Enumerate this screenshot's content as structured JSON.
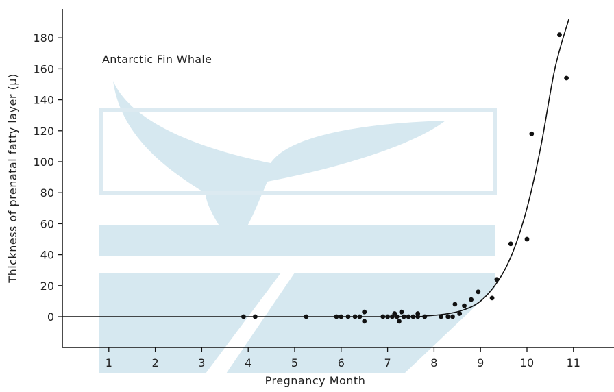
{
  "chart_data": {
    "type": "scatter",
    "title": "",
    "annotation": "Antarctic Fin Whale",
    "xlabel": "Pregnancy Month",
    "ylabel": "Thickness of prenatal fatty layer (μ)",
    "xlim": [
      0,
      12
    ],
    "ylim": [
      -20,
      192
    ],
    "x_ticks": [
      1,
      2,
      3,
      4,
      5,
      6,
      7,
      8,
      9,
      10,
      11
    ],
    "y_ticks": [
      0,
      20,
      40,
      60,
      80,
      100,
      120,
      140,
      160,
      180
    ],
    "grid": false,
    "points": [
      {
        "x": 3.9,
        "y": 0
      },
      {
        "x": 4.15,
        "y": 0
      },
      {
        "x": 5.25,
        "y": 0
      },
      {
        "x": 5.9,
        "y": 0
      },
      {
        "x": 6.0,
        "y": 0
      },
      {
        "x": 6.15,
        "y": 0
      },
      {
        "x": 6.3,
        "y": 0
      },
      {
        "x": 6.4,
        "y": 0
      },
      {
        "x": 6.5,
        "y": 3
      },
      {
        "x": 6.5,
        "y": -3
      },
      {
        "x": 6.9,
        "y": 0
      },
      {
        "x": 7.0,
        "y": 0
      },
      {
        "x": 7.1,
        "y": 0
      },
      {
        "x": 7.15,
        "y": 2
      },
      {
        "x": 7.2,
        "y": 0
      },
      {
        "x": 7.25,
        "y": -3
      },
      {
        "x": 7.3,
        "y": 3
      },
      {
        "x": 7.35,
        "y": 0
      },
      {
        "x": 7.45,
        "y": 0
      },
      {
        "x": 7.55,
        "y": 0
      },
      {
        "x": 7.65,
        "y": 2
      },
      {
        "x": 7.65,
        "y": 0
      },
      {
        "x": 7.8,
        "y": 0
      },
      {
        "x": 8.15,
        "y": 0
      },
      {
        "x": 8.3,
        "y": 0
      },
      {
        "x": 8.4,
        "y": 0
      },
      {
        "x": 8.45,
        "y": 8
      },
      {
        "x": 8.55,
        "y": 2
      },
      {
        "x": 8.65,
        "y": 7
      },
      {
        "x": 8.8,
        "y": 11
      },
      {
        "x": 8.95,
        "y": 16
      },
      {
        "x": 9.25,
        "y": 12
      },
      {
        "x": 9.35,
        "y": 24
      },
      {
        "x": 9.65,
        "y": 47
      },
      {
        "x": 10.0,
        "y": 50
      },
      {
        "x": 10.1,
        "y": 118
      },
      {
        "x": 10.7,
        "y": 182
      },
      {
        "x": 10.85,
        "y": 154
      }
    ],
    "series": [
      {
        "type": "line",
        "values": [
          {
            "x": 0,
            "y": 0
          },
          {
            "x": 7.0,
            "y": 0
          },
          {
            "x": 7.8,
            "y": 0.5
          },
          {
            "x": 8.2,
            "y": 1.5
          },
          {
            "x": 8.6,
            "y": 4
          },
          {
            "x": 9.0,
            "y": 10
          },
          {
            "x": 9.4,
            "y": 24
          },
          {
            "x": 9.7,
            "y": 42
          },
          {
            "x": 10.0,
            "y": 70
          },
          {
            "x": 10.3,
            "y": 110
          },
          {
            "x": 10.6,
            "y": 160
          },
          {
            "x": 10.9,
            "y": 192
          }
        ]
      }
    ]
  }
}
